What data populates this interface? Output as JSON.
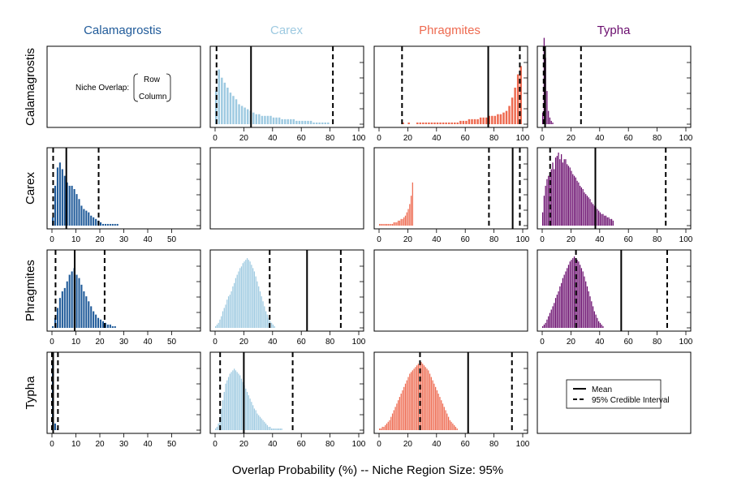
{
  "figure": {
    "xlabel": "Overlap Probability (%) -- Niche Region Size: 95%",
    "note_label": "Niche Overlap:",
    "note_row": "Row",
    "note_col": "Column",
    "legend": {
      "mean": "Mean",
      "ci": "95% Credible Interval"
    }
  },
  "species": [
    {
      "name": "Calamagrostis",
      "color": "#1f5a99"
    },
    {
      "name": "Carex",
      "color": "#9ecae1"
    },
    {
      "name": "Phragmites",
      "color": "#ee6a50"
    },
    {
      "name": "Typha",
      "color": "#6a0d6e"
    }
  ],
  "chart_data": {
    "type": "bar",
    "layout": "4x4 matrix of overlap histograms (row species overlapping column species)",
    "x_ticks": {
      "col0": [
        0,
        10,
        20,
        30,
        40,
        50
      ],
      "other": [
        0,
        20,
        40,
        60,
        80,
        100
      ]
    },
    "xlim": {
      "col0": [
        0,
        60
      ],
      "other": [
        0,
        100
      ]
    },
    "panels": [
      {
        "row": 0,
        "col": 1,
        "color": "#9ecae1",
        "bin": 2,
        "mean": 25,
        "ci": [
          1,
          82
        ],
        "values": [
          10,
          16.5,
          14,
          12.5,
          11,
          9.5,
          8.5,
          7.5,
          6,
          5.5,
          5,
          4.5,
          4,
          3.5,
          3,
          3,
          2.5,
          2.5,
          2.5,
          2.5,
          2,
          2,
          2,
          1.5,
          1.5,
          1.5,
          1.5,
          1.5,
          1,
          1,
          1,
          1,
          1,
          1,
          0.5,
          0.5,
          0.5,
          0.5,
          0.5,
          0.5
        ]
      },
      {
        "row": 0,
        "col": 2,
        "color": "#ee6a50",
        "bin": 2,
        "mean": 76,
        "ci": [
          16,
          98
        ],
        "values": [
          0,
          0,
          0,
          0,
          0,
          0,
          0,
          0,
          0.5,
          0,
          0.5,
          0,
          0,
          0.5,
          0.5,
          0.5,
          0.5,
          0.5,
          0.5,
          0.5,
          0.5,
          0.5,
          0.5,
          0.5,
          0.5,
          0.5,
          0.5,
          0.5,
          1,
          1,
          1,
          1.5,
          1.5,
          1.5,
          1.5,
          2,
          2,
          2,
          2.5,
          2.5,
          2.5,
          3,
          3,
          3.5,
          4,
          5.5,
          8,
          11,
          15,
          17.5
        ]
      },
      {
        "row": 0,
        "col": 3,
        "color": "#6a0d6e",
        "bin": 1,
        "mean": 2,
        "ci": [
          1,
          27
        ],
        "values": [
          3.5,
          26,
          20,
          10,
          4,
          2,
          1,
          0.5
        ]
      },
      {
        "row": 1,
        "col": 0,
        "color": "#1f5a99",
        "bin": 1,
        "mean": 6,
        "ci": [
          0.5,
          19.5
        ],
        "values": [
          2.5,
          12,
          17.5,
          19,
          17,
          15,
          13,
          12,
          12,
          11,
          9.5,
          8,
          6,
          5,
          4.5,
          4,
          3,
          2.5,
          2,
          1.5,
          1,
          0.5,
          0.5,
          0.5,
          0.5,
          0.5,
          0.5,
          0.5
        ]
      },
      {
        "row": 1,
        "col": 2,
        "color": "#ee6a50",
        "bin": 1,
        "mean": 93,
        "ci": [
          76.5,
          98
        ],
        "values": [
          0.5,
          0.5,
          0.5,
          0.5,
          0.5,
          0.5,
          0.5,
          0.5,
          0.5,
          0.5,
          1,
          1,
          1,
          1.5,
          1.5,
          2,
          2,
          2.5,
          3,
          4,
          5,
          6.5,
          9,
          13
        ]
      },
      {
        "row": 1,
        "col": 3,
        "color": "#6a0d6e",
        "bin": 1,
        "mean": 37,
        "ci": [
          5.5,
          86
        ],
        "values": [
          4,
          9,
          12,
          14,
          15,
          16,
          17,
          19,
          17,
          20.5,
          21,
          22,
          20,
          21.5,
          19,
          20,
          20,
          18.5,
          18,
          17.5,
          16.5,
          15.5,
          15,
          14.5,
          13.5,
          13,
          12,
          11.5,
          11,
          10,
          9.5,
          9,
          8.5,
          8,
          7,
          6.5,
          6,
          5.5,
          5,
          4.5,
          4,
          3.5,
          3.5,
          3,
          3,
          2.5,
          2.5,
          2,
          2,
          1.5
        ]
      },
      {
        "row": 2,
        "col": 0,
        "color": "#1f5a99",
        "bin": 1,
        "mean": 9.5,
        "ci": [
          1.5,
          22
        ],
        "values": [
          0.5,
          3,
          6,
          9,
          11,
          12,
          14,
          16,
          17,
          18,
          16,
          15,
          13,
          11,
          9.5,
          8,
          6.5,
          5,
          4,
          3,
          2.5,
          2,
          1.5,
          1,
          1,
          0.5,
          0.5
        ]
      },
      {
        "row": 2,
        "col": 1,
        "color": "#9ecae1",
        "bin": 1,
        "mean": 64,
        "ci": [
          38,
          87.5
        ],
        "values": [
          0.5,
          1,
          1.5,
          2.5,
          3.5,
          5,
          6,
          7,
          8.5,
          9.5,
          10,
          11,
          12.5,
          13.5,
          15,
          16,
          17,
          18,
          18.5,
          19.5,
          20,
          20.5,
          21,
          20.5,
          20,
          19,
          18,
          17,
          15.5,
          14,
          12.5,
          11,
          9.5,
          8,
          6.5,
          5,
          4,
          3,
          2,
          1.5,
          1,
          0.5
        ]
      },
      {
        "row": 2,
        "col": 3,
        "color": "#6a0d6e",
        "bin": 1,
        "mean": 55,
        "ci": [
          23.5,
          87
        ],
        "values": [
          0.5,
          1,
          1.5,
          2.5,
          3.5,
          4.5,
          5.5,
          6.5,
          7.5,
          9,
          10,
          11,
          12.5,
          13.5,
          15,
          16,
          17,
          18,
          19,
          20,
          20.5,
          21,
          21.5,
          21,
          20.5,
          20,
          19,
          18,
          17,
          15.5,
          14,
          12.5,
          11,
          9.5,
          8,
          6.5,
          5,
          4,
          3,
          2,
          1.5,
          1,
          0.5
        ]
      },
      {
        "row": 3,
        "col": 0,
        "color": "#1f5a99",
        "bin": 1,
        "mean": 0.5,
        "ci": [
          0,
          2.5
        ],
        "values": [
          20,
          2,
          0.5
        ]
      },
      {
        "row": 3,
        "col": 1,
        "color": "#9ecae1",
        "bin": 1,
        "mean": 20,
        "ci": [
          3.5,
          54
        ],
        "values": [
          0.5,
          1,
          2,
          4,
          6.5,
          9,
          11.5,
          14,
          15,
          16,
          17,
          17.5,
          18,
          18.5,
          18,
          17.5,
          17,
          16.5,
          15.5,
          14.5,
          13.5,
          12.5,
          11.5,
          10.5,
          9.5,
          8.5,
          7.5,
          6.5,
          6,
          5,
          4.5,
          4,
          3.5,
          3,
          2.5,
          2,
          1.5,
          1,
          1,
          0.5,
          0.5,
          0.5,
          0.5,
          0.5,
          0.5,
          0.5,
          0.5
        ]
      },
      {
        "row": 3,
        "col": 2,
        "color": "#ee6a50",
        "bin": 1,
        "mean": 62,
        "ci": [
          28.5,
          92.5
        ],
        "values": [
          0.5,
          0.5,
          1,
          1,
          1.5,
          2,
          2.5,
          3,
          4,
          5,
          6,
          7,
          8,
          9,
          10,
          11,
          12,
          13,
          14,
          15,
          16,
          17,
          17.5,
          18,
          18.5,
          19,
          19.5,
          20,
          20.5,
          20.5,
          20,
          19.5,
          19,
          18.5,
          18,
          17,
          16,
          15,
          14,
          13,
          12,
          11,
          10,
          9,
          8,
          7,
          6,
          5,
          4,
          3,
          2.5,
          2,
          1.5,
          1,
          0.5
        ]
      }
    ]
  }
}
